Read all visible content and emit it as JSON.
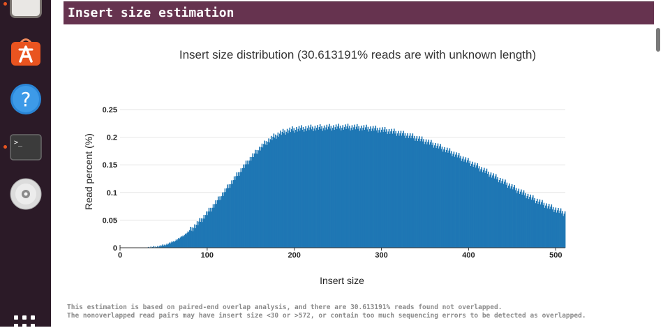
{
  "section": {
    "title": "Insert size estimation"
  },
  "dock": {
    "items": [
      {
        "name": "files-icon",
        "running": true
      },
      {
        "name": "software-icon",
        "running": false
      },
      {
        "name": "help-icon",
        "running": false
      },
      {
        "name": "terminal-icon",
        "running": true
      },
      {
        "name": "disc-icon",
        "running": false
      },
      {
        "name": "apps-grid-icon",
        "running": false
      }
    ],
    "accent": "#e95420"
  },
  "chart_data": {
    "type": "bar",
    "title": "Insert size distribution (30.613191% reads are with unknown length)",
    "xlabel": "Insert size",
    "ylabel": "Read percent (%)",
    "xlim": [
      0,
      511
    ],
    "ylim": [
      0,
      0.25
    ],
    "x_ticks": [
      0,
      100,
      200,
      300,
      400,
      500
    ],
    "y_ticks": [
      0,
      0.05,
      0.1,
      0.15,
      0.2,
      0.25
    ],
    "color": "#1f77b4",
    "grid": true,
    "x_start": 30,
    "x_end": 511,
    "values": [
      0.0003,
      0.0003,
      0.0004,
      0.0005,
      0.0006,
      0.0007,
      0.0008,
      0.0009,
      0.0011,
      0.0013,
      0.0015,
      0.0017,
      0.0019,
      0.0021,
      0.0024,
      0.0027,
      0.003,
      0.0033,
      0.0037,
      0.0041,
      0.0045,
      0.0049,
      0.0053,
      0.0058,
      0.0063,
      0.0068,
      0.0074,
      0.008,
      0.0086,
      0.0092,
      0.0099,
      0.0106,
      0.0113,
      0.0121,
      0.0129,
      0.0137,
      0.0145,
      0.0154,
      0.0163,
      0.0172,
      0.0182,
      0.0192,
      0.0202,
      0.0212,
      0.0223,
      0.0234,
      0.0245,
      0.0257,
      0.0269,
      0.0281,
      0.0293,
      0.0306,
      0.0319,
      0.0332,
      0.0345,
      0.0359,
      0.0373,
      0.0387,
      0.0401,
      0.0416,
      0.0431,
      0.0446,
      0.0461,
      0.0477,
      0.0493,
      0.0509,
      0.0525,
      0.0541,
      0.0558,
      0.0575,
      0.0592,
      0.0609,
      0.0626,
      0.0644,
      0.0662,
      0.068,
      0.0698,
      0.0716,
      0.0735,
      0.0753,
      0.0772,
      0.0791,
      0.081,
      0.0829,
      0.0848,
      0.0867,
      0.0887,
      0.0906,
      0.0926,
      0.0945,
      0.0965,
      0.0985,
      0.1005,
      0.1024,
      0.1044,
      0.1064,
      0.1084,
      0.1104,
      0.1124,
      0.1144,
      0.1164,
      0.1184,
      0.1204,
      0.1224,
      0.1244,
      0.1264,
      0.1284,
      0.1303,
      0.1323,
      0.1343,
      0.1362,
      0.1382,
      0.1401,
      0.1421,
      0.144,
      0.1459,
      0.1478,
      0.1497,
      0.1516,
      0.1534,
      0.1553,
      0.1571,
      0.1589,
      0.1607,
      0.1625,
      0.1643,
      0.166,
      0.1677,
      0.1694,
      0.1711,
      0.1728,
      0.1744,
      0.176,
      0.1776,
      0.1791,
      0.1807,
      0.1822,
      0.1836,
      0.1851,
      0.1865,
      0.1878,
      0.1892,
      0.1905,
      0.1917,
      0.193,
      0.1942,
      0.1953,
      0.1965,
      0.1975,
      0.1986,
      0.1996,
      0.2006,
      0.2015,
      0.2024,
      0.2033,
      0.2041,
      0.2049,
      0.2057,
      0.2064,
      0.2071,
      0.2078,
      0.2084,
      0.209,
      0.2095,
      0.2101,
      0.2106,
      0.211,
      0.2115,
      0.2119,
      0.2123,
      0.2126,
      0.213,
      0.2133,
      0.2136,
      0.2139,
      0.2141,
      0.2143,
      0.2146,
      0.2148,
      0.215,
      0.2151,
      0.2153,
      0.2154,
      0.2156,
      0.2157,
      0.2158,
      0.2159,
      0.216,
      0.2161,
      0.2162,
      0.2163,
      0.2164,
      0.2165,
      0.2165,
      0.2166,
      0.2167,
      0.2167,
      0.2168,
      0.2169,
      0.2169,
      0.217,
      0.2171,
      0.2171,
      0.2172,
      0.2172,
      0.2173,
      0.2174,
      0.2174,
      0.2175,
      0.2175,
      0.2176,
      0.2176,
      0.2177,
      0.2177,
      0.2178,
      0.2178,
      0.2179,
      0.2179,
      0.218,
      0.218,
      0.218,
      0.2181,
      0.2181,
      0.2181,
      0.2182,
      0.2182,
      0.2182,
      0.2182,
      0.2183,
      0.2183,
      0.2183,
      0.2183,
      0.2183,
      0.2183,
      0.2183,
      0.2183,
      0.2183,
      0.2183,
      0.2183,
      0.2183,
      0.2182,
      0.2182,
      0.2182,
      0.2181,
      0.2181,
      0.218,
      0.218,
      0.2179,
      0.2179,
      0.2178,
      0.2177,
      0.2176,
      0.2176,
      0.2175,
      0.2174,
      0.2173,
      0.2172,
      0.2171,
      0.217,
      0.2169,
      0.2167,
      0.2166,
      0.2165,
      0.2164,
      0.2162,
      0.2161,
      0.2159,
      0.2158,
      0.2156,
      0.2154,
      0.2153,
      0.2151,
      0.2149,
      0.2147,
      0.2145,
      0.2143,
      0.2141,
      0.2139,
      0.2137,
      0.2135,
      0.2132,
      0.213,
      0.2128,
      0.2125,
      0.2123,
      0.212,
      0.2117,
      0.2115,
      0.2112,
      0.2109,
      0.2106,
      0.2103,
      0.21,
      0.2097,
      0.2094,
      0.2091,
      0.2088,
      0.2084,
      0.2081,
      0.2077,
      0.2074,
      0.207,
      0.2067,
      0.2063,
      0.2059,
      0.2055,
      0.2051,
      0.2047,
      0.2043,
      0.2039,
      0.2035,
      0.2031,
      0.2026,
      0.2022,
      0.2017,
      0.2013,
      0.2008,
      0.2004,
      0.1999,
      0.1994,
      0.1989,
      0.1984,
      0.1979,
      0.1974,
      0.1969,
      0.1964,
      0.1958,
      0.1953,
      0.1948,
      0.1942,
      0.1937,
      0.1931,
      0.1925,
      0.1919,
      0.1914,
      0.1908,
      0.1902,
      0.1896,
      0.189,
      0.1884,
      0.1877,
      0.1871,
      0.1865,
      0.1858,
      0.1852,
      0.1845,
      0.1839,
      0.1832,
      0.1825,
      0.1818,
      0.1812,
      0.1805,
      0.1798,
      0.1791,
      0.1784,
      0.1776,
      0.1769,
      0.1762,
      0.1755,
      0.1747,
      0.174,
      0.1732,
      0.1725,
      0.1717,
      0.171,
      0.1702,
      0.1694,
      0.1686,
      0.1678,
      0.1671,
      0.1663,
      0.1655,
      0.1647,
      0.1638,
      0.163,
      0.1622,
      0.1614,
      0.1606,
      0.1597,
      0.1589,
      0.1581,
      0.1572,
      0.1564,
      0.1555,
      0.1547,
      0.1538,
      0.153,
      0.1521,
      0.1512,
      0.1504,
      0.1495,
      0.1486,
      0.1477,
      0.1469,
      0.146,
      0.1451,
      0.1442,
      0.1433,
      0.1424,
      0.1416,
      0.1407,
      0.1398,
      0.1389,
      0.138,
      0.1371,
      0.1362,
      0.1353,
      0.1344,
      0.1335,
      0.1326,
      0.1317,
      0.1308,
      0.1299,
      0.129,
      0.1281,
      0.1272,
      0.1263,
      0.1254,
      0.1245,
      0.1236,
      0.1227,
      0.1218,
      0.1209,
      0.12,
      0.1191,
      0.1182,
      0.1173,
      0.1164,
      0.1155,
      0.1146,
      0.1137,
      0.1128,
      0.1119,
      0.111,
      0.1102,
      0.1093,
      0.1084,
      0.1075,
      0.1066,
      0.1058,
      0.1049,
      0.104,
      0.1032,
      0.1023,
      0.1014,
      0.1006,
      0.0997,
      0.0989,
      0.098,
      0.0972,
      0.0964,
      0.0955,
      0.0947,
      0.0939,
      0.093,
      0.0922,
      0.0914,
      0.0906,
      0.0898,
      0.089,
      0.0882,
      0.0874,
      0.0866,
      0.0858,
      0.085,
      0.0842,
      0.0835,
      0.0827,
      0.0819,
      0.0812,
      0.0804,
      0.0797,
      0.0789,
      0.0782,
      0.0775,
      0.0767,
      0.076,
      0.0753,
      0.0746,
      0.0739,
      0.0732,
      0.0725,
      0.0718,
      0.0711,
      0.0705,
      0.0698,
      0.0691,
      0.0685,
      0.0678,
      0.0672,
      0.0665,
      0.0659,
      0.0653,
      0.0647,
      0.0641,
      0.0635,
      0.0629,
      0.0623
    ]
  },
  "footnote": {
    "line1": "This estimation is based on paired-end overlap analysis, and there are 30.613191% reads found not overlapped.",
    "line2": "The nonoverlapped read pairs may have insert size <30 or >572, or contain too much sequencing errors to be detected as overlapped."
  }
}
